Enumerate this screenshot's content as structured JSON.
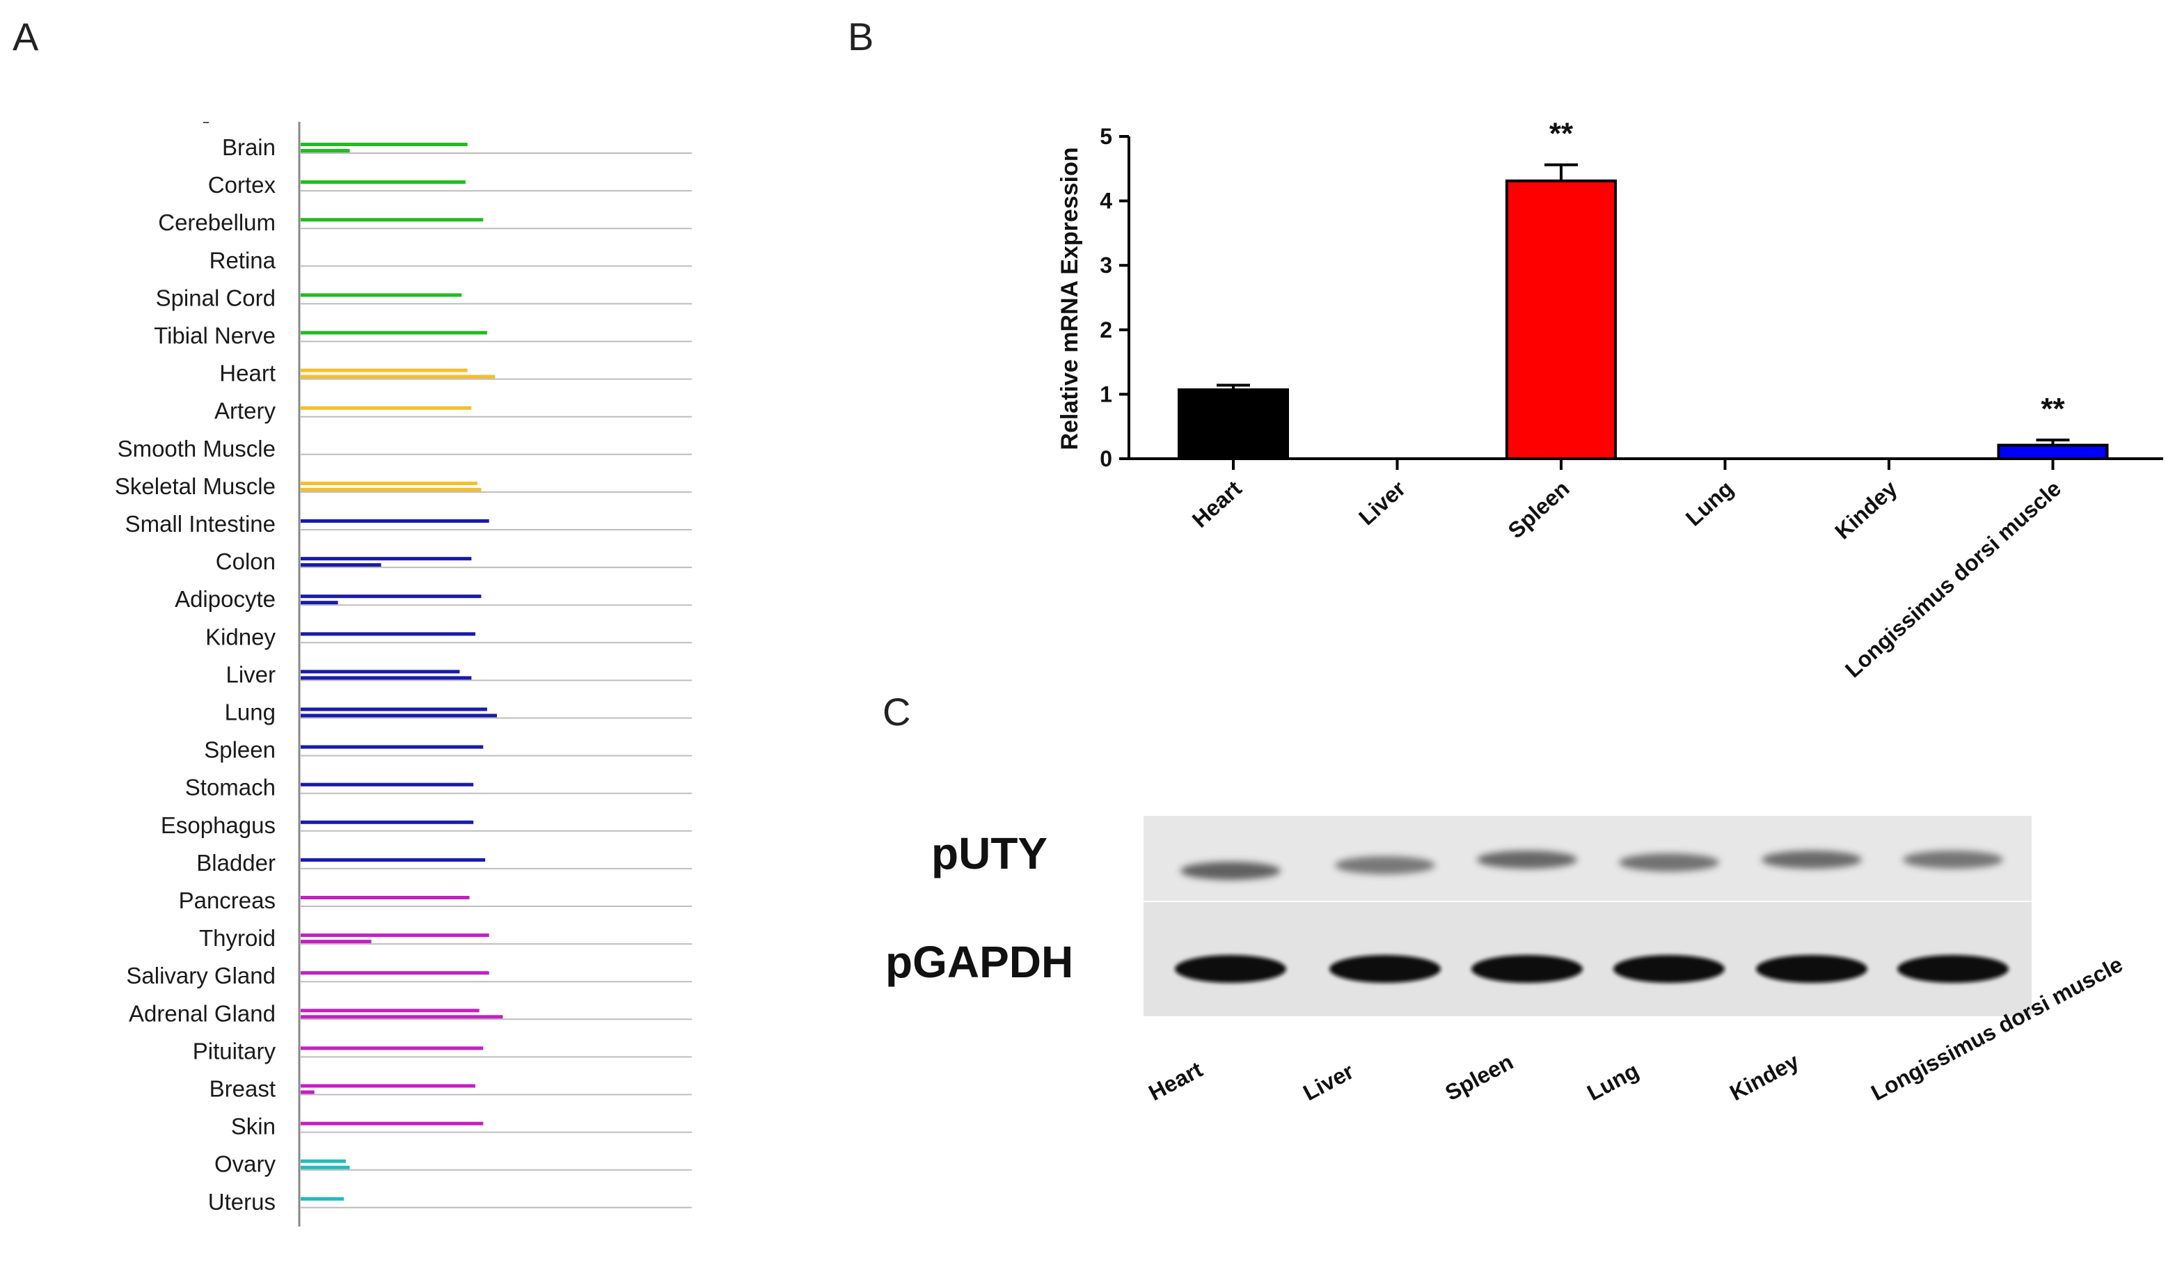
{
  "panels": {
    "a": "A",
    "b": "B",
    "c": "C"
  },
  "chart_data": [
    {
      "panel": "A",
      "type": "bar",
      "orientation": "horizontal",
      "grid": true,
      "value_scale": "relative, no axis ticks shown",
      "tissues": [
        {
          "name": "Brain",
          "color": "#22bb22",
          "values": [
            0.85,
            0.25
          ]
        },
        {
          "name": "Cortex",
          "color": "#22bb22",
          "values": [
            0.84
          ]
        },
        {
          "name": "Cerebellum",
          "color": "#22bb22",
          "values": [
            0.93
          ]
        },
        {
          "name": "Retina",
          "color": "#22bb22",
          "values": []
        },
        {
          "name": "Spinal Cord",
          "color": "#22bb22",
          "values": [
            0.82
          ]
        },
        {
          "name": "Tibial Nerve",
          "color": "#22bb22",
          "values": [
            0.95
          ]
        },
        {
          "name": "Heart",
          "color": "#f5be2a",
          "values": [
            0.85,
            0.99
          ]
        },
        {
          "name": "Artery",
          "color": "#f5be2a",
          "values": [
            0.87
          ]
        },
        {
          "name": "Smooth Muscle",
          "color": "#f5be2a",
          "values": []
        },
        {
          "name": "Skeletal Muscle",
          "color": "#f5be2a",
          "values": [
            0.9,
            0.92
          ]
        },
        {
          "name": "Small Intestine",
          "color": "#1a1aaa",
          "values": [
            0.96
          ]
        },
        {
          "name": "Colon",
          "color": "#1a1aaa",
          "values": [
            0.87,
            0.41
          ]
        },
        {
          "name": "Adipocyte",
          "color": "#1a1aaa",
          "values": [
            0.92,
            0.19
          ]
        },
        {
          "name": "Kidney",
          "color": "#1a1aaa",
          "values": [
            0.89
          ]
        },
        {
          "name": "Liver",
          "color": "#1a1aaa",
          "values": [
            0.81,
            0.87
          ]
        },
        {
          "name": "Lung",
          "color": "#1a1aaa",
          "values": [
            0.95,
            1.0
          ]
        },
        {
          "name": "Spleen",
          "color": "#1a1aaa",
          "values": [
            0.93
          ]
        },
        {
          "name": "Stomach",
          "color": "#1a1aaa",
          "values": [
            0.88
          ]
        },
        {
          "name": "Esophagus",
          "color": "#1a1aaa",
          "values": [
            0.88
          ]
        },
        {
          "name": "Bladder",
          "color": "#1a1aaa",
          "values": [
            0.94
          ]
        },
        {
          "name": "Pancreas",
          "color": "#c41fc4",
          "values": [
            0.86
          ]
        },
        {
          "name": "Thyroid",
          "color": "#c41fc4",
          "values": [
            0.96,
            0.36
          ]
        },
        {
          "name": "Salivary Gland",
          "color": "#c41fc4",
          "values": [
            0.96
          ]
        },
        {
          "name": "Adrenal Gland",
          "color": "#c41fc4",
          "values": [
            0.91,
            1.03
          ]
        },
        {
          "name": "Pituitary",
          "color": "#c41fc4",
          "values": [
            0.93
          ]
        },
        {
          "name": "Breast",
          "color": "#c41fc4",
          "values": [
            0.89,
            0.07
          ]
        },
        {
          "name": "Skin",
          "color": "#c41fc4",
          "values": [
            0.93
          ]
        },
        {
          "name": "Ovary",
          "color": "#22bbbb",
          "values": [
            0.23,
            0.25
          ]
        },
        {
          "name": "Uterus",
          "color": "#22bbbb",
          "values": [
            0.22
          ]
        }
      ]
    },
    {
      "panel": "B",
      "type": "bar",
      "title": "",
      "xlabel": "",
      "ylabel": "Relative mRNA Expression",
      "ylim": [
        0,
        5
      ],
      "yticks": [
        "0",
        "1",
        "2",
        "3",
        "4",
        "5"
      ],
      "categories": [
        "Heart",
        "Liver",
        "Spleen",
        "Lung",
        "Kindey",
        "Longissimus dorsi muscle"
      ],
      "values": [
        1.07,
        0,
        4.31,
        0,
        0,
        0.21
      ],
      "errors": [
        0.07,
        0,
        0.25,
        0,
        0,
        0.08
      ],
      "colors": [
        "#000000",
        "#ff0000",
        "#ff0000",
        "#ff0000",
        "#ff0000",
        "#0000ff"
      ],
      "significance": [
        "",
        "",
        "**",
        "",
        "",
        "**"
      ]
    }
  ],
  "gel": {
    "panel": "C",
    "row_labels": [
      "pUTY",
      "pGAPDH"
    ],
    "lanes": [
      "Heart",
      "Liver",
      "Spleen",
      "Lung",
      "Kindey",
      "Longissimus dorsi muscle"
    ],
    "puty_intensity": [
      0.78,
      0.64,
      0.74,
      0.68,
      0.72,
      0.66
    ],
    "gapdh_intensity": [
      1,
      1,
      1,
      1,
      1,
      1
    ]
  }
}
